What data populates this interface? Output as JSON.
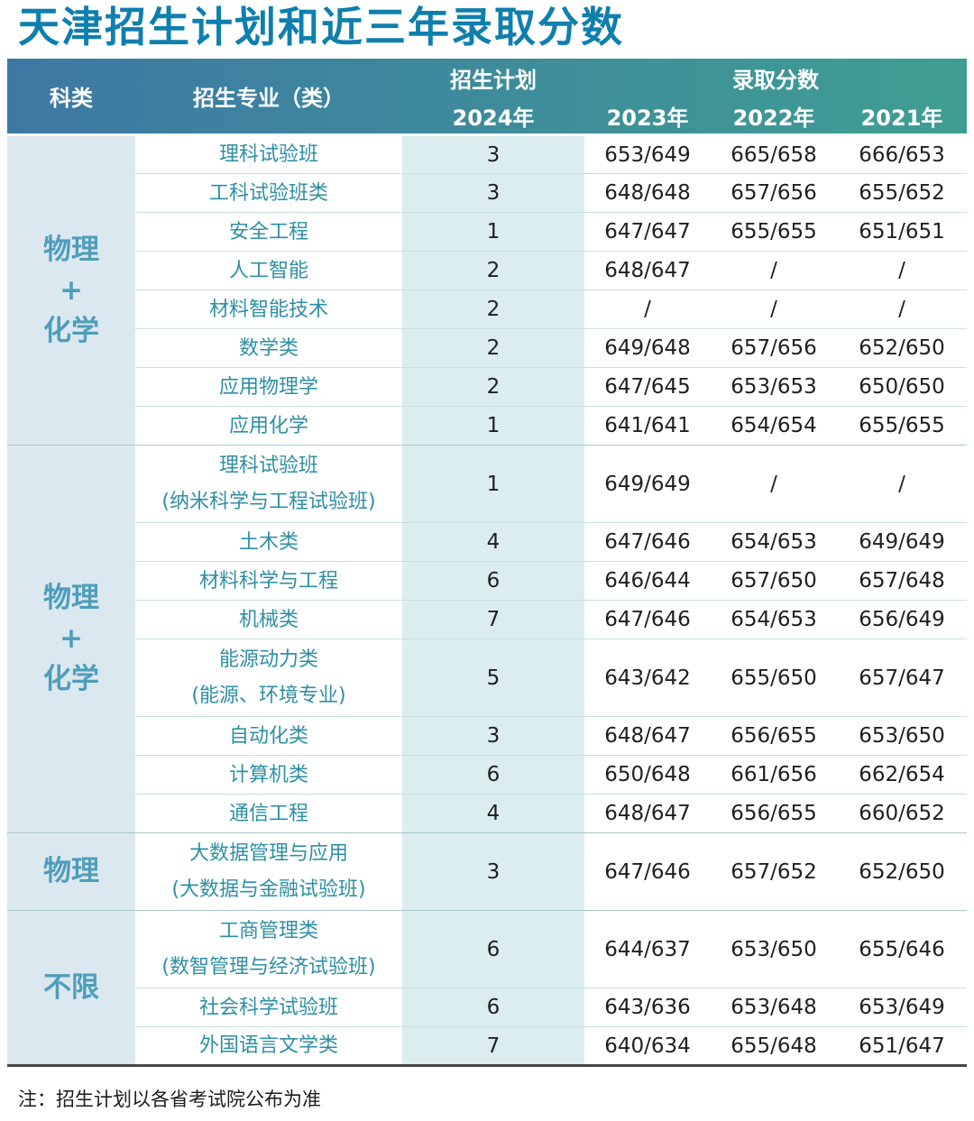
{
  "title": "天津招生计划和近三年录取分数",
  "note": "注：招生计划以各省考试院公布为准",
  "header": {
    "category": "科类",
    "major": "招生专业（类）",
    "plan": "招生计划",
    "plan_year": "2024年",
    "scores": "录取分数",
    "score_years": [
      "2023年",
      "2022年",
      "2021年"
    ]
  },
  "groups": [
    {
      "category": "物理\n+\n化学",
      "rows": [
        {
          "major": "理科试验班",
          "plan": "3",
          "s2023": "653/649",
          "s2022": "665/658",
          "s2021": "666/653"
        },
        {
          "major": "工科试验班类",
          "plan": "3",
          "s2023": "648/648",
          "s2022": "657/656",
          "s2021": "655/652"
        },
        {
          "major": "安全工程",
          "plan": "1",
          "s2023": "647/647",
          "s2022": "655/655",
          "s2021": "651/651"
        },
        {
          "major": "人工智能",
          "plan": "2",
          "s2023": "648/647",
          "s2022": "/",
          "s2021": "/"
        },
        {
          "major": "材料智能技术",
          "plan": "2",
          "s2023": "/",
          "s2022": "/",
          "s2021": "/"
        },
        {
          "major": "数学类",
          "plan": "2",
          "s2023": "649/648",
          "s2022": "657/656",
          "s2021": "652/650"
        },
        {
          "major": "应用物理学",
          "plan": "2",
          "s2023": "647/645",
          "s2022": "653/653",
          "s2021": "650/650"
        },
        {
          "major": "应用化学",
          "plan": "1",
          "s2023": "641/641",
          "s2022": "654/654",
          "s2021": "655/655"
        }
      ]
    },
    {
      "category": "物理\n+\n化学",
      "rows": [
        {
          "major": "理科试验班\n(纳米科学与工程试验班)",
          "plan": "1",
          "s2023": "649/649",
          "s2022": "/",
          "s2021": "/"
        },
        {
          "major": "土木类",
          "plan": "4",
          "s2023": "647/646",
          "s2022": "654/653",
          "s2021": "649/649"
        },
        {
          "major": "材料科学与工程",
          "plan": "6",
          "s2023": "646/644",
          "s2022": "657/650",
          "s2021": "657/648"
        },
        {
          "major": "机械类",
          "plan": "7",
          "s2023": "647/646",
          "s2022": "654/653",
          "s2021": "656/649"
        },
        {
          "major": "能源动力类\n(能源、环境专业)",
          "plan": "5",
          "s2023": "643/642",
          "s2022": "655/650",
          "s2021": "657/647"
        },
        {
          "major": "自动化类",
          "plan": "3",
          "s2023": "648/647",
          "s2022": "656/655",
          "s2021": "653/650"
        },
        {
          "major": "计算机类",
          "plan": "6",
          "s2023": "650/648",
          "s2022": "661/656",
          "s2021": "662/654"
        },
        {
          "major": "通信工程",
          "plan": "4",
          "s2023": "648/647",
          "s2022": "656/655",
          "s2021": "660/652"
        }
      ]
    },
    {
      "category": "物理",
      "rows": [
        {
          "major": "大数据管理与应用\n(大数据与金融试验班)",
          "plan": "3",
          "s2023": "647/646",
          "s2022": "657/652",
          "s2021": "652/650"
        }
      ]
    },
    {
      "category": "不限",
      "rows": [
        {
          "major": "工商管理类\n(数智管理与经济试验班)",
          "plan": "6",
          "s2023": "644/637",
          "s2022": "653/650",
          "s2021": "655/646"
        },
        {
          "major": "社会科学试验班",
          "plan": "6",
          "s2023": "643/636",
          "s2022": "653/648",
          "s2021": "653/649"
        },
        {
          "major": "外国语言文学类",
          "plan": "7",
          "s2023": "640/634",
          "s2022": "655/648",
          "s2021": "651/647"
        }
      ]
    }
  ],
  "colors": {
    "title_text": "#0f7fad",
    "header_gradient_left": "#3e78a4",
    "header_gradient_right": "#3f9e92",
    "header_text": "#ffffff",
    "category_column_bg": "#dce8ef",
    "plan_column_bg": "#dcedef",
    "category_text": "#4e9dbb",
    "major_text": "#2e8fa4",
    "score_text": "#1f1f1f",
    "row_divider": "#c9e0e0",
    "group_divider": "#a9c7ca",
    "table_bottom_border": "#474747"
  }
}
